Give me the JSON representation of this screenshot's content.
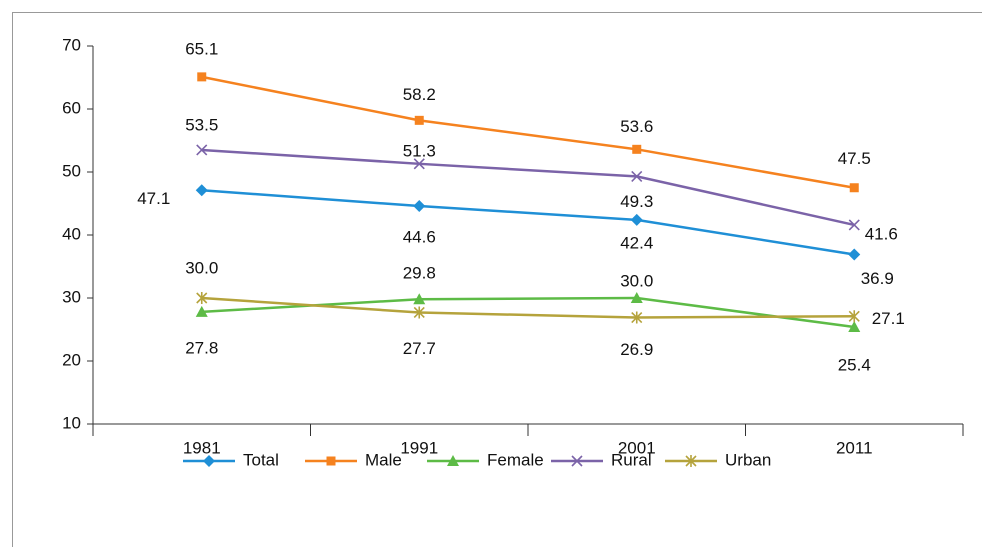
{
  "chart_data": {
    "type": "line",
    "categories": [
      "1981",
      "1991",
      "2001",
      "2011"
    ],
    "series": [
      {
        "name": "Total",
        "color": "#1f8fd6",
        "marker": "diamond",
        "values": [
          47.1,
          44.6,
          42.4,
          36.9
        ],
        "value_labels": [
          "47.1",
          "44.6",
          "42.4",
          "36.9"
        ]
      },
      {
        "name": "Male",
        "color": "#f5821f",
        "marker": "square",
        "values": [
          65.1,
          58.2,
          53.6,
          47.5
        ],
        "value_labels": [
          "65.1",
          "58.2",
          "53.6",
          "47.5"
        ]
      },
      {
        "name": "Female",
        "color": "#5dbb46",
        "marker": "triangle",
        "values": [
          27.8,
          29.8,
          30.0,
          25.4
        ],
        "value_labels": [
          "27.8",
          "29.8",
          "30.0",
          "25.4"
        ]
      },
      {
        "name": "Rural",
        "color": "#7b63a8",
        "marker": "x",
        "values": [
          53.5,
          51.3,
          49.3,
          41.6
        ],
        "value_labels": [
          "53.5",
          "51.3",
          "49.3",
          "41.6"
        ]
      },
      {
        "name": "Urban",
        "color": "#b5a33c",
        "marker": "star",
        "values": [
          30.0,
          27.7,
          26.9,
          27.1
        ],
        "value_labels": [
          "30.0",
          "27.7",
          "26.9",
          "27.1"
        ]
      }
    ],
    "ylim": [
      10,
      70
    ],
    "yticks": [
      10,
      20,
      30,
      40,
      50,
      60,
      70
    ],
    "legend": "bottom"
  }
}
